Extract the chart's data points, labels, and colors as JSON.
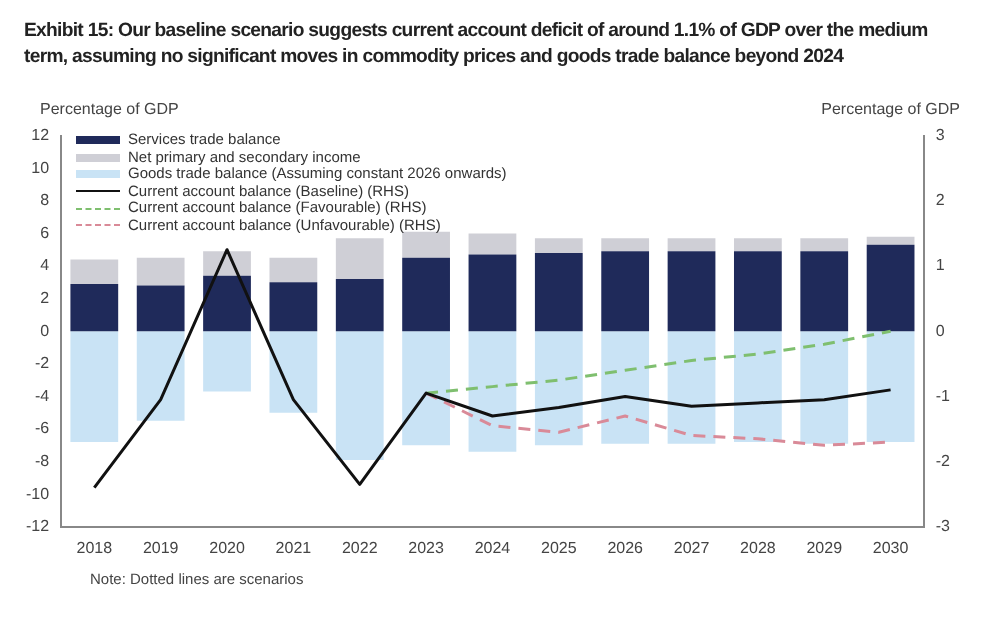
{
  "chart_data": {
    "type": "bar",
    "title": "Exhibit 15: Our baseline scenario suggests current account deficit of around 1.1% of GDP over the medium term, assuming no significant moves in commodity prices and goods trade balance beyond 2024",
    "ylabel": "Percentage of GDP",
    "y2label": "Percentage of GDP",
    "categories": [
      "2018",
      "2019",
      "2020",
      "2021",
      "2022",
      "2023",
      "2024",
      "2025",
      "2026",
      "2027",
      "2028",
      "2029",
      "2030"
    ],
    "stacked": true,
    "legend": "top left",
    "grid": false,
    "ylim": [
      -12,
      12
    ],
    "yticks": [
      -12,
      -10,
      -8,
      -6,
      -4,
      -2,
      0,
      2,
      4,
      6,
      8,
      10,
      12
    ],
    "y2lim": [
      -3,
      3
    ],
    "y2ticks": [
      -3,
      -2,
      -1,
      0,
      1,
      2,
      3
    ],
    "series": [
      {
        "name": "Services trade balance",
        "color": "#1f2a5a",
        "values": [
          2.9,
          2.8,
          3.4,
          3.0,
          3.2,
          4.5,
          4.7,
          4.8,
          4.9,
          4.9,
          4.9,
          4.9,
          5.3
        ]
      },
      {
        "name": "Net primary and secondary income",
        "color": "#cfcfd6",
        "values": [
          1.5,
          1.7,
          1.5,
          1.5,
          2.5,
          1.6,
          1.3,
          0.9,
          0.8,
          0.8,
          0.8,
          0.8,
          0.5
        ]
      },
      {
        "name": "Goods trade balance (Assuming constant 2026 onwards)",
        "color": "#c9e3f5",
        "values": [
          -6.8,
          -5.5,
          -3.7,
          -5.0,
          -7.9,
          -7.0,
          -7.4,
          -7.0,
          -6.9,
          -6.9,
          -6.8,
          -6.9,
          -6.8
        ]
      },
      {
        "name": "Current account balance (Baseline) (RHS)",
        "type": "line",
        "axis": "y2",
        "color": "#111111",
        "line_style": "solid",
        "values": [
          -2.4,
          -1.05,
          1.25,
          -1.05,
          -2.35,
          -0.95,
          -1.3,
          -1.17,
          -1.0,
          -1.15,
          -1.1,
          -1.05,
          -0.9
        ]
      },
      {
        "name": "Current account balance (Favourable) (RHS)",
        "type": "line",
        "axis": "y2",
        "color": "#7fbf6f",
        "line_style": "dashed",
        "values": [
          null,
          null,
          null,
          null,
          null,
          -0.95,
          -0.85,
          -0.75,
          -0.6,
          -0.45,
          -0.35,
          -0.2,
          0.0
        ]
      },
      {
        "name": "Current account balance (Unfavourable) (RHS)",
        "type": "line",
        "axis": "y2",
        "color": "#d98a98",
        "line_style": "dashed",
        "values": [
          null,
          null,
          null,
          null,
          null,
          -0.95,
          -1.45,
          -1.55,
          -1.3,
          -1.6,
          -1.65,
          -1.75,
          -1.7
        ]
      }
    ],
    "annotations": [
      "Note: Dotted lines are scenarios"
    ]
  }
}
